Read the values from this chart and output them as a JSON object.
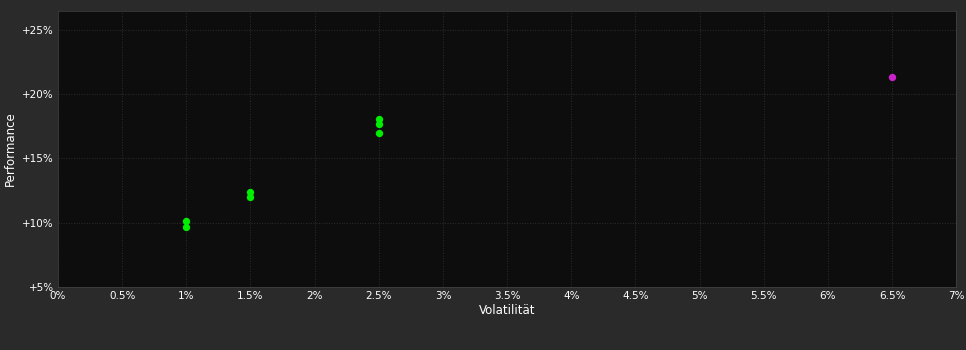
{
  "background_color": "#2a2a2a",
  "plot_bg_color": "#0d0d0d",
  "grid_color": "#2e2e2e",
  "xlabel": "Volatilität",
  "ylabel": "Performance",
  "xlim": [
    0.0,
    0.07
  ],
  "ylim": [
    0.05,
    0.265
  ],
  "xticks": [
    0.0,
    0.005,
    0.01,
    0.015,
    0.02,
    0.025,
    0.03,
    0.035,
    0.04,
    0.045,
    0.05,
    0.055,
    0.06,
    0.065,
    0.07
  ],
  "xtick_labels": [
    "0%",
    "0.5%",
    "1%",
    "1.5%",
    "2%",
    "2.5%",
    "3%",
    "3.5%",
    "4%",
    "4.5%",
    "5%",
    "5.5%",
    "6%",
    "6.5%",
    "7%"
  ],
  "yticks": [
    0.05,
    0.1,
    0.15,
    0.2,
    0.25
  ],
  "ytick_labels": [
    "+5%",
    "+10%",
    "+15%",
    "+20%",
    "+25%"
  ],
  "green_points": [
    [
      0.01,
      0.101
    ],
    [
      0.01,
      0.097
    ],
    [
      0.015,
      0.124
    ],
    [
      0.015,
      0.12
    ],
    [
      0.025,
      0.181
    ],
    [
      0.025,
      0.177
    ],
    [
      0.025,
      0.17
    ]
  ],
  "magenta_points": [
    [
      0.065,
      0.213
    ]
  ],
  "green_color": "#00ee00",
  "magenta_color": "#cc22cc",
  "marker_size": 28,
  "tick_color": "#ffffff",
  "label_color": "#ffffff",
  "tick_fontsize": 7.5,
  "label_fontsize": 8.5
}
